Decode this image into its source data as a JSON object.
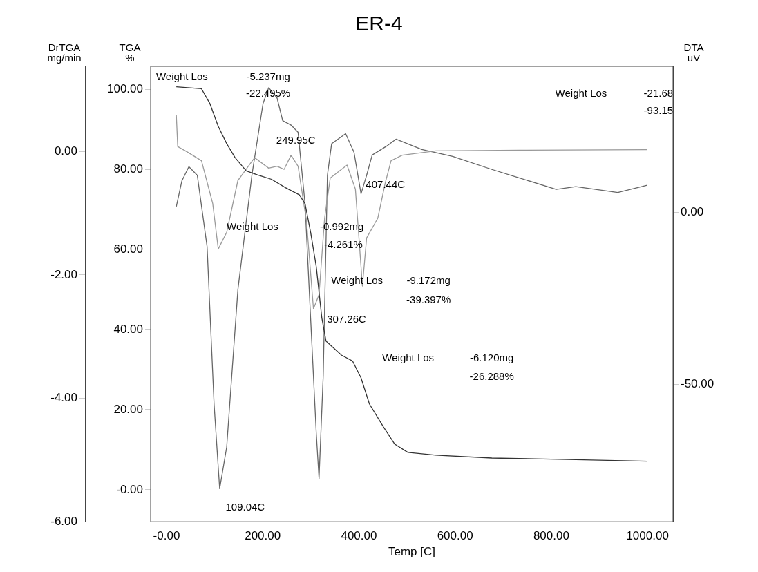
{
  "chart_data": {
    "type": "line",
    "title": "ER-4",
    "xlabel": "Temp [C]",
    "ylabel": "TGA\n%",
    "y2label": "DrTGA\nmg/min",
    "y3label": "DTA\nuV",
    "xlim": [
      -33,
      1053
    ],
    "xticks": [
      {
        "value": 0,
        "label": "-0.00"
      },
      {
        "value": 200,
        "label": "200.00"
      },
      {
        "value": 400,
        "label": "400.00"
      },
      {
        "value": 600,
        "label": "600.00"
      },
      {
        "value": 800,
        "label": "800.00"
      },
      {
        "value": 1000,
        "label": "1000.00"
      }
    ],
    "ylim": [
      -8,
      105.7
    ],
    "yticks": [
      {
        "value": 0,
        "label": "-0.00"
      },
      {
        "value": 20,
        "label": "20.00"
      },
      {
        "value": 40,
        "label": "40.00"
      },
      {
        "value": 60,
        "label": "60.00"
      },
      {
        "value": 80,
        "label": "80.00"
      },
      {
        "value": 100,
        "label": "100.00"
      }
    ],
    "y2lim": [
      -6,
      1.38
    ],
    "y2ticks": [
      {
        "value": 0,
        "label": "0.00"
      },
      {
        "value": -2,
        "label": "-2.00"
      },
      {
        "value": -4,
        "label": "-4.00"
      },
      {
        "value": -6,
        "label": "-6.00"
      }
    ],
    "y3lim": [
      -90,
      42.5
    ],
    "y3ticks": [
      {
        "value": 0,
        "label": "0.00"
      },
      {
        "value": -50,
        "label": "-50.00"
      }
    ],
    "grid": false,
    "legend": false,
    "marker": "none",
    "line_style": "solid",
    "series": [
      {
        "axis": "y",
        "color": "#333333",
        "x": [
          20.4,
          72.7,
          90.2,
          107.6,
          125.1,
          142.5,
          165.8,
          189.1,
          218.2,
          247.3,
          276.4,
          288,
          299.6,
          311.3,
          322.9,
          331.6,
          363.6,
          386.9,
          404.4,
          421.8,
          450.9,
          474.2,
          501.8,
          560,
          676.4,
          850.9,
          999.3
        ],
        "values": [
          100.6,
          100.1,
          96.4,
          90.7,
          86.4,
          82.9,
          79.6,
          78.6,
          77.5,
          75.4,
          73.6,
          71.4,
          64.3,
          55.7,
          42.9,
          37.1,
          33.6,
          32.1,
          27.9,
          21.4,
          15.7,
          11.4,
          9.3,
          8.6,
          7.9,
          7.5,
          7.1
        ]
      },
      {
        "axis": "y2",
        "color": "#9a9a9a",
        "x": [
          20.4,
          23.3,
          43.6,
          72.7,
          96,
          107.6,
          125.1,
          148.4,
          183.3,
          212.4,
          229.8,
          244.4,
          258.9,
          273.5,
          290.9,
          305.5,
          317.1,
          328.7,
          340.4,
          363.6,
          375.3,
          392.7,
          407.3,
          416,
          439.3,
          455,
          466.9,
          490,
          560,
          734.5,
          999.3
        ],
        "values": [
          0.59,
          0.08,
          -0.01,
          -0.15,
          -0.84,
          -1.58,
          -1.31,
          -0.47,
          -0.1,
          -0.27,
          -0.24,
          -0.29,
          -0.06,
          -0.24,
          -1.12,
          -2.55,
          -2.32,
          -1.08,
          -0.43,
          -0.29,
          -0.22,
          -0.61,
          -2.18,
          -1.4,
          -1.08,
          -0.5,
          -0.15,
          -0.06,
          0.01,
          0.02,
          0.03
        ]
      },
      {
        "axis": "y3",
        "color": "#666666",
        "x": [
          20.4,
          32,
          46.5,
          64,
          84.4,
          98.9,
          110.5,
          125.1,
          148.4,
          177.5,
          200.7,
          212.4,
          229.8,
          241.5,
          258.9,
          273.5,
          288,
          299.6,
          311.3,
          317.1,
          325.8,
          334.5,
          343.3,
          372.4,
          389.8,
          404.4,
          416,
          427.6,
          456.7,
          477.1,
          530.9,
          594.9,
          676.4,
          810.2,
          850.9,
          938.2,
          999.3
        ],
        "values": [
          1.7,
          9.2,
          13.3,
          10.8,
          -10,
          -55.8,
          -80.4,
          -68.3,
          -22.5,
          10.8,
          31.7,
          36.3,
          33.3,
          26.7,
          25.4,
          23.3,
          2.5,
          -30.8,
          -64.2,
          -77.5,
          -47.5,
          10.8,
          20,
          22.9,
          17.5,
          5.4,
          10.8,
          16.7,
          19.2,
          21.3,
          18.3,
          16.3,
          12.5,
          6.7,
          7.5,
          5.8,
          7.9
        ]
      }
    ],
    "annotations": [
      "Weight Los",
      "-5.237mg",
      "-22.495%",
      {
        "text": "249.95C",
        "x": 269,
        "y": 87.1
      },
      "Weight Los",
      "-21.68",
      "-93.15",
      {
        "text": "407.44C",
        "x": 455,
        "y": 76.1
      },
      "Weight Los",
      "-0.992mg",
      "-4.261%",
      "Weight Los",
      "-9.172mg",
      "-39.397%",
      "307.26C",
      "Weight Los",
      "-6.120mg",
      "-26.288%",
      "109.04C"
    ]
  }
}
